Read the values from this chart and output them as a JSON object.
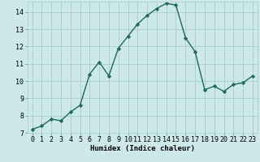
{
  "title": "",
  "xlabel": "Humidex (Indice chaleur)",
  "ylabel": "",
  "x": [
    0,
    1,
    2,
    3,
    4,
    5,
    6,
    7,
    8,
    9,
    10,
    11,
    12,
    13,
    14,
    15,
    16,
    17,
    18,
    19,
    20,
    21,
    22,
    23
  ],
  "y": [
    7.2,
    7.4,
    7.8,
    7.7,
    8.2,
    8.6,
    10.4,
    11.1,
    10.3,
    11.9,
    12.6,
    13.3,
    13.8,
    14.2,
    14.5,
    14.4,
    12.5,
    11.7,
    9.5,
    9.7,
    9.4,
    9.8,
    9.9,
    10.3
  ],
  "line_color": "#1a6b5a",
  "marker": "D",
  "marker_size": 2.2,
  "bg_color": "#cce8e8",
  "grid_color": "#aacccc",
  "ylim": [
    7,
    14.6
  ],
  "xlim": [
    -0.5,
    23.5
  ],
  "yticks": [
    7,
    8,
    9,
    10,
    11,
    12,
    13,
    14
  ],
  "xticks": [
    0,
    1,
    2,
    3,
    4,
    5,
    6,
    7,
    8,
    9,
    10,
    11,
    12,
    13,
    14,
    15,
    16,
    17,
    18,
    19,
    20,
    21,
    22,
    23
  ],
  "xlabel_fontsize": 6.5,
  "tick_fontsize": 6.0,
  "linewidth": 1.0
}
